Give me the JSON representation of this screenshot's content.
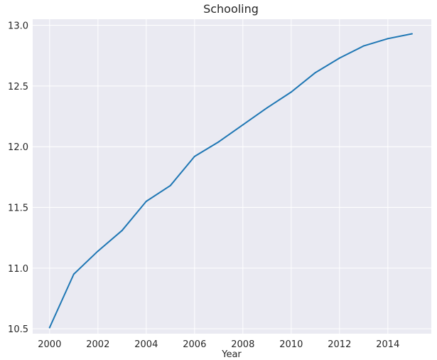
{
  "chart_data": {
    "type": "line",
    "title": "Schooling",
    "xlabel": "Year",
    "ylabel": "",
    "x": [
      2000,
      2001,
      2002,
      2003,
      2004,
      2005,
      2006,
      2007,
      2008,
      2009,
      2010,
      2011,
      2012,
      2013,
      2014,
      2015
    ],
    "series": [
      {
        "values": [
          10.51,
          10.95,
          11.14,
          11.31,
          11.55,
          11.68,
          11.92,
          12.04,
          12.18,
          12.32,
          12.45,
          12.61,
          12.73,
          12.83,
          12.89,
          12.93
        ]
      }
    ],
    "xticks": [
      "2000",
      "2002",
      "2004",
      "2006",
      "2008",
      "2010",
      "2012",
      "2014"
    ],
    "yticks": [
      "10.5",
      "11.0",
      "11.5",
      "12.0",
      "12.5",
      "13.0"
    ],
    "xlim": [
      1999.3,
      2015.8
    ],
    "ylim": [
      10.46,
      13.05
    ],
    "grid": true,
    "colors": {
      "line": "#1f77b4",
      "background": "#eaeaf2",
      "grid": "#ffffff"
    }
  }
}
